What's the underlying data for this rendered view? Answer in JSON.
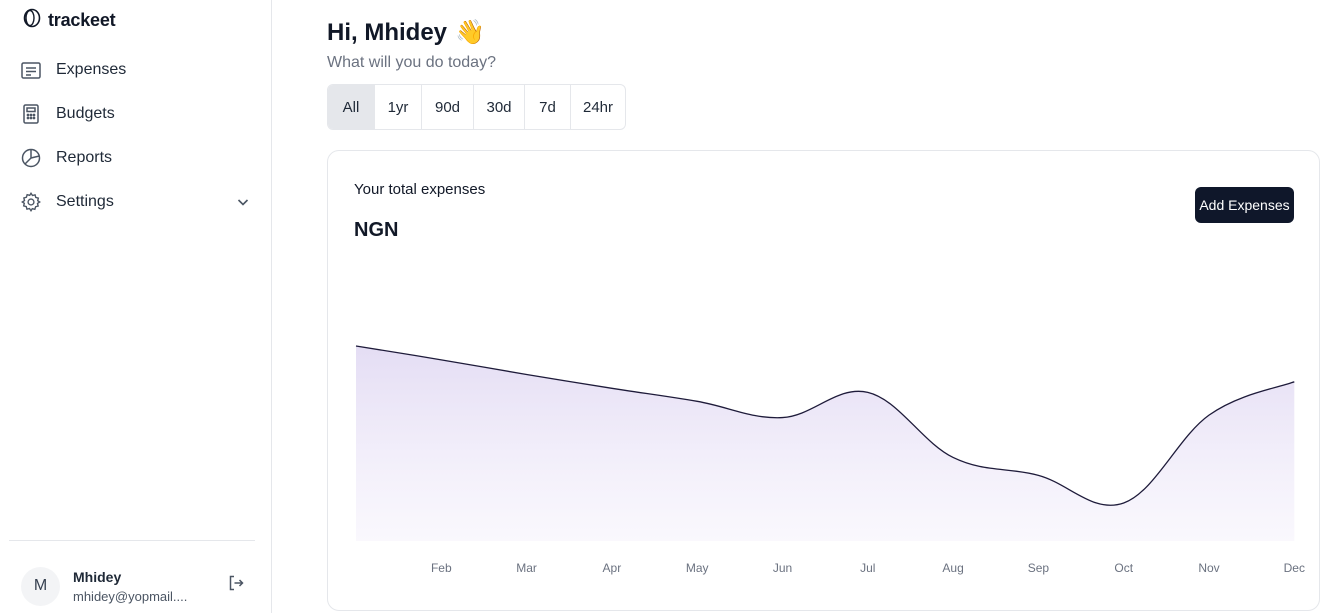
{
  "app": {
    "brand": "trackeet"
  },
  "sidebar": {
    "items": [
      {
        "label": "Expenses",
        "icon": "receipt-icon"
      },
      {
        "label": "Budgets",
        "icon": "calculator-icon"
      },
      {
        "label": "Reports",
        "icon": "pie-chart-icon"
      },
      {
        "label": "Settings",
        "icon": "gear-icon"
      }
    ]
  },
  "user": {
    "initial": "M",
    "name": "Mhidey",
    "email": "mhidey@yopmail...."
  },
  "header": {
    "greeting": "Hi, Mhidey",
    "wave": "👋",
    "subtitle": "What will you do today?"
  },
  "ranges": [
    "All",
    "1yr",
    "90d",
    "30d",
    "7d",
    "24hr"
  ],
  "active_range": "All",
  "card": {
    "title": "Your total expenses",
    "amount": "NGN",
    "add_button": "Add Expenses"
  },
  "colors": {
    "accent": "#0f172a",
    "area_fill": "#e6e0f5",
    "line": "#1e1b3a"
  },
  "chart_data": {
    "type": "area",
    "categories": [
      "",
      "Feb",
      "Mar",
      "Apr",
      "May",
      "Jun",
      "Jul",
      "Aug",
      "Sep",
      "Oct",
      "Nov",
      "Dec"
    ],
    "values": [
      100,
      83,
      65,
      48,
      32,
      12,
      43,
      -37,
      -59,
      -93,
      15,
      56
    ],
    "title": "",
    "xlabel": "",
    "ylabel": "",
    "grid": false,
    "legend": "none"
  }
}
